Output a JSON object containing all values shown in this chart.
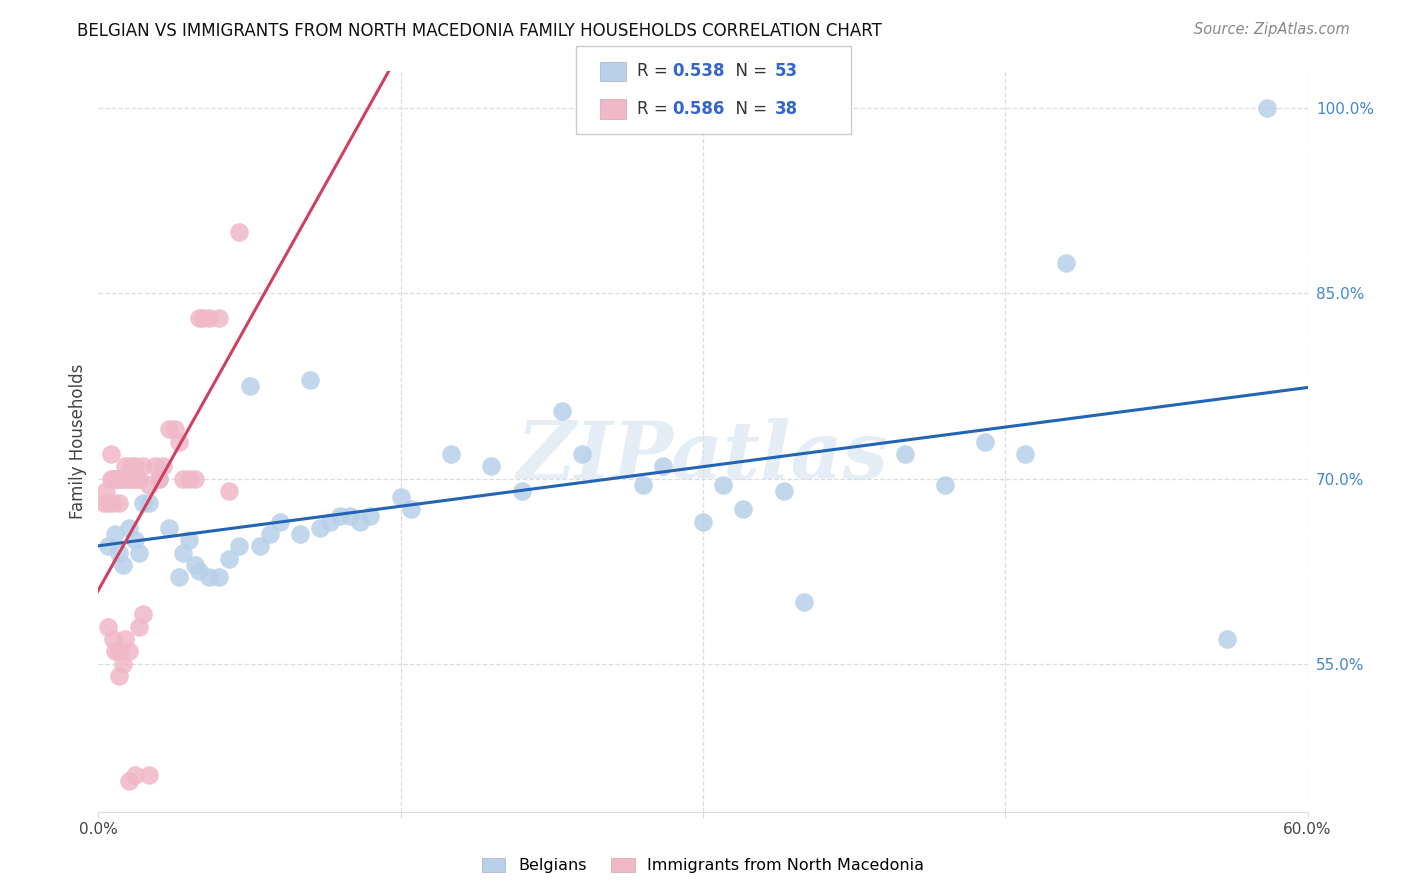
{
  "title": "BELGIAN VS IMMIGRANTS FROM NORTH MACEDONIA FAMILY HOUSEHOLDS CORRELATION CHART",
  "source": "Source: ZipAtlas.com",
  "ylabel": "Family Households",
  "xlim": [
    0.0,
    0.6
  ],
  "ylim": [
    0.43,
    1.03
  ],
  "blue_R": 0.538,
  "blue_N": 53,
  "pink_R": 0.586,
  "pink_N": 38,
  "blue_color": "#b8d0e8",
  "pink_color": "#f0b8c8",
  "blue_line_color": "#2464b4",
  "pink_line_color": "#d04060",
  "watermark": "ZIPatlas",
  "ytick_right_labels": [
    "100.0%",
    "85.0%",
    "70.0%",
    "55.0%"
  ],
  "ytick_right_values": [
    1.0,
    0.85,
    0.7,
    0.55
  ],
  "blue_scatter_x": [
    0.005,
    0.008,
    0.01,
    0.012,
    0.015,
    0.018,
    0.02,
    0.022,
    0.025,
    0.03,
    0.035,
    0.04,
    0.042,
    0.045,
    0.048,
    0.05,
    0.055,
    0.06,
    0.065,
    0.07,
    0.075,
    0.08,
    0.085,
    0.09,
    0.1,
    0.105,
    0.11,
    0.115,
    0.12,
    0.125,
    0.13,
    0.135,
    0.15,
    0.155,
    0.175,
    0.195,
    0.21,
    0.23,
    0.24,
    0.27,
    0.28,
    0.3,
    0.31,
    0.32,
    0.34,
    0.35,
    0.4,
    0.42,
    0.44,
    0.46,
    0.48,
    0.56,
    0.58
  ],
  "blue_scatter_y": [
    0.645,
    0.655,
    0.64,
    0.63,
    0.66,
    0.65,
    0.64,
    0.68,
    0.68,
    0.7,
    0.66,
    0.62,
    0.64,
    0.65,
    0.63,
    0.625,
    0.62,
    0.62,
    0.635,
    0.645,
    0.775,
    0.645,
    0.655,
    0.665,
    0.655,
    0.78,
    0.66,
    0.665,
    0.67,
    0.67,
    0.665,
    0.67,
    0.685,
    0.675,
    0.72,
    0.71,
    0.69,
    0.755,
    0.72,
    0.695,
    0.71,
    0.665,
    0.695,
    0.675,
    0.69,
    0.6,
    0.72,
    0.695,
    0.73,
    0.72,
    0.875,
    0.57,
    1.0
  ],
  "pink_scatter_x": [
    0.003,
    0.004,
    0.005,
    0.006,
    0.006,
    0.007,
    0.007,
    0.008,
    0.009,
    0.01,
    0.01,
    0.011,
    0.012,
    0.013,
    0.014,
    0.015,
    0.016,
    0.017,
    0.018,
    0.019,
    0.02,
    0.022,
    0.025,
    0.028,
    0.03,
    0.032,
    0.035,
    0.038,
    0.04,
    0.042,
    0.045,
    0.048,
    0.05,
    0.052,
    0.055,
    0.06,
    0.065,
    0.07
  ],
  "pink_scatter_y": [
    0.68,
    0.69,
    0.68,
    0.7,
    0.72,
    0.7,
    0.68,
    0.7,
    0.7,
    0.7,
    0.68,
    0.7,
    0.7,
    0.71,
    0.7,
    0.7,
    0.71,
    0.7,
    0.71,
    0.7,
    0.7,
    0.71,
    0.695,
    0.71,
    0.7,
    0.71,
    0.74,
    0.74,
    0.73,
    0.7,
    0.7,
    0.7,
    0.83,
    0.83,
    0.83,
    0.83,
    0.69,
    0.9
  ],
  "pink_extra_x": [
    0.005,
    0.007,
    0.008,
    0.01,
    0.01,
    0.012,
    0.013,
    0.015,
    0.015,
    0.018,
    0.02,
    0.022,
    0.025
  ],
  "pink_extra_y": [
    0.58,
    0.57,
    0.56,
    0.56,
    0.54,
    0.55,
    0.57,
    0.56,
    0.455,
    0.46,
    0.58,
    0.59,
    0.46
  ]
}
